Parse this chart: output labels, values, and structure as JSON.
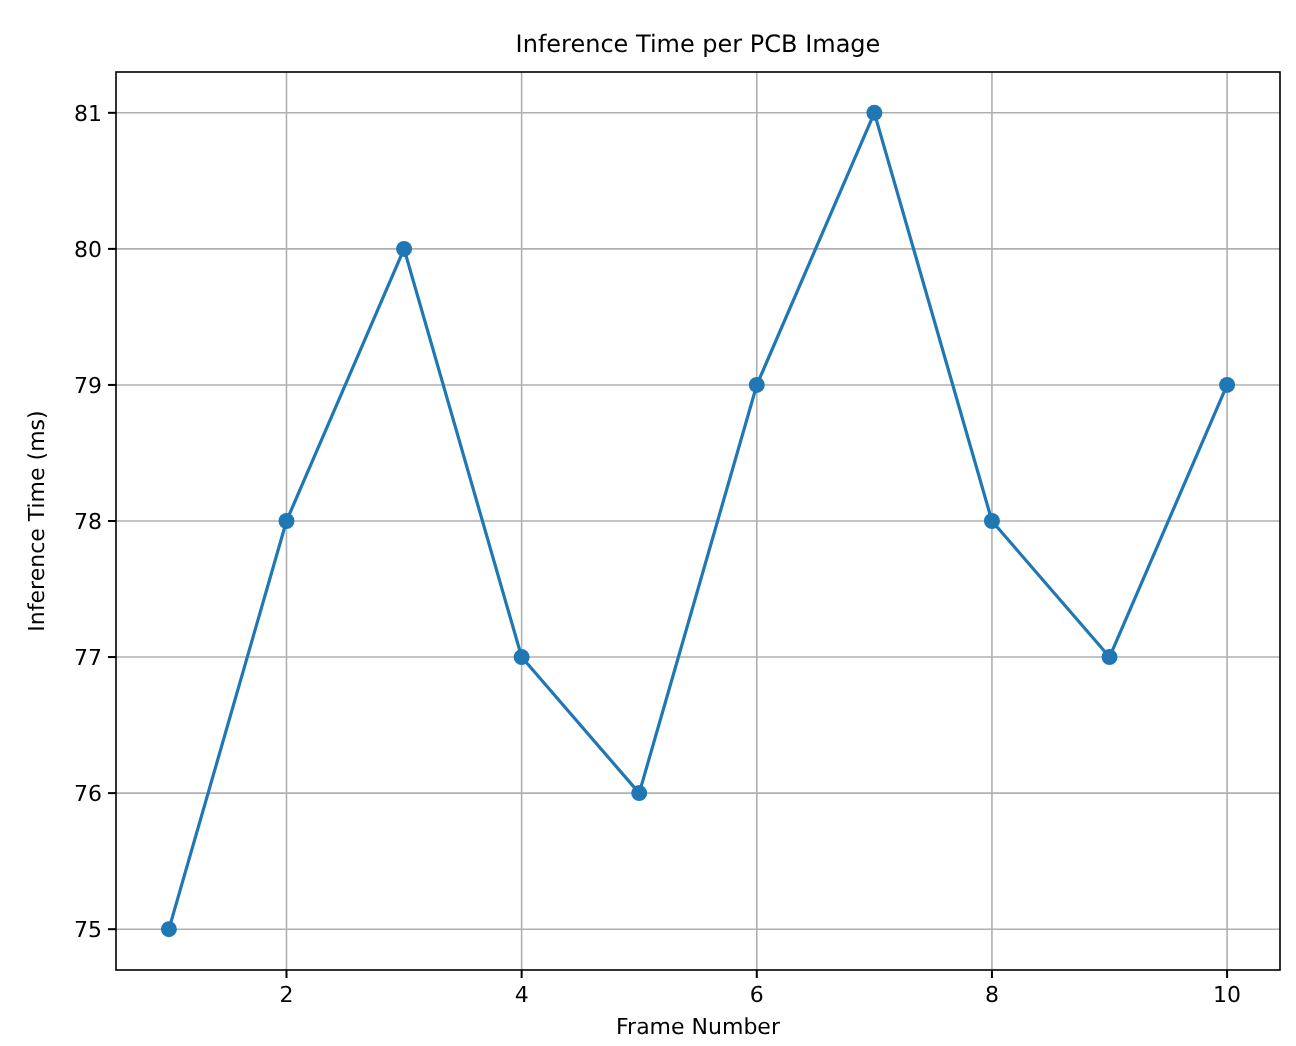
{
  "chart_data": {
    "type": "line",
    "title": "Inference Time per PCB Image",
    "xlabel": "Frame Number",
    "ylabel": "Inference Time (ms)",
    "x": [
      1,
      2,
      3,
      4,
      5,
      6,
      7,
      8,
      9,
      10
    ],
    "series": [
      {
        "color": "#1f77b4",
        "values": [
          75,
          78,
          80,
          77,
          76,
          79,
          81,
          78,
          77,
          79
        ]
      }
    ],
    "xlim": [
      0.55,
      10.45
    ],
    "xticks": [
      2,
      4,
      6,
      8,
      10
    ],
    "ylim": [
      74.7,
      81.3
    ],
    "yticks": [
      75,
      76,
      77,
      78,
      79,
      80,
      81
    ],
    "grid": true,
    "marker": "circle",
    "line_style": "solid"
  }
}
